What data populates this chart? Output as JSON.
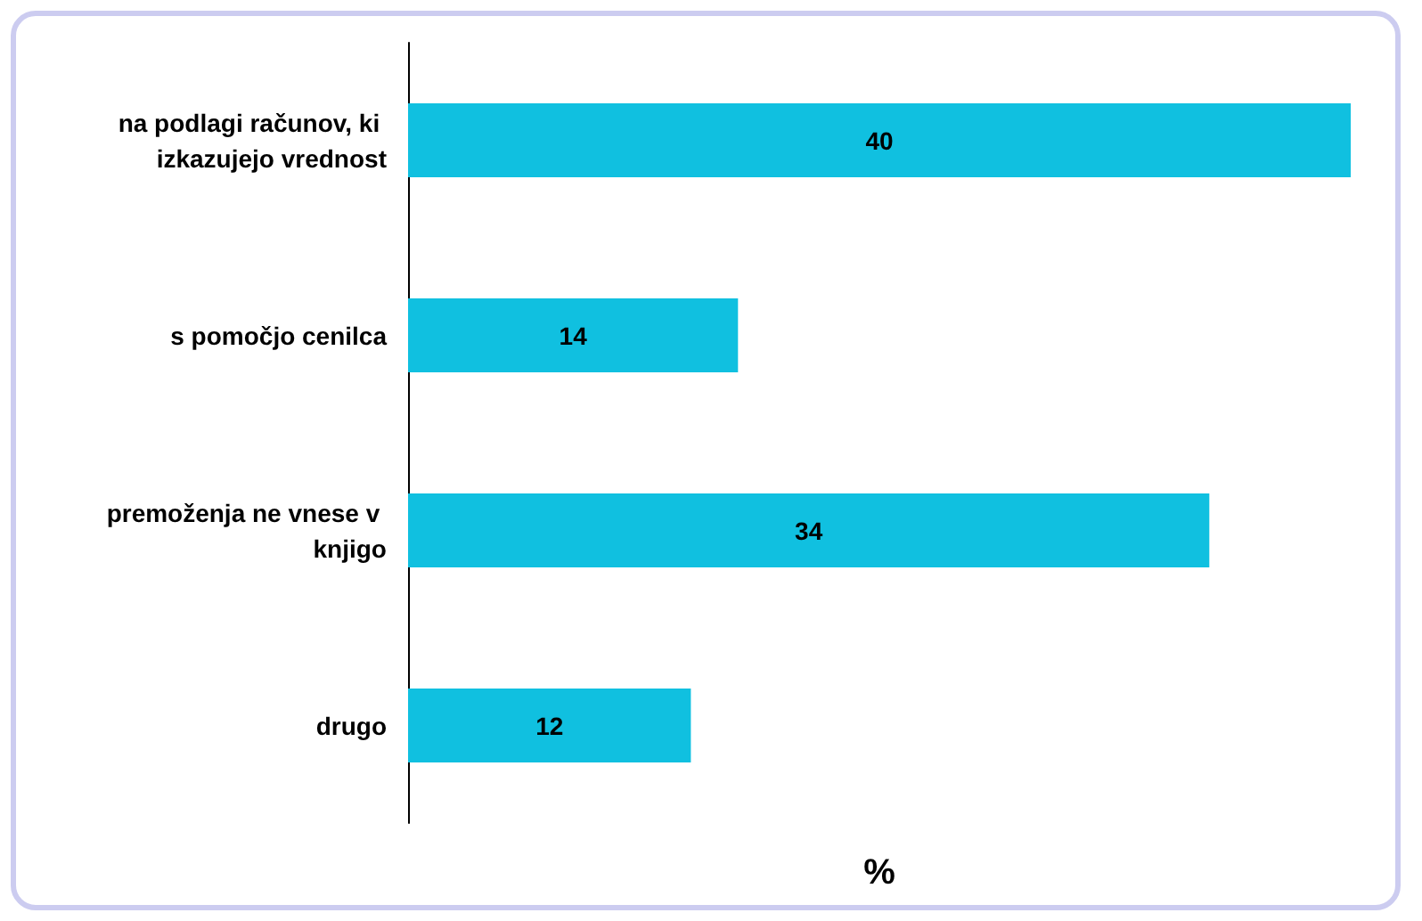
{
  "chart_data": {
    "type": "bar",
    "orientation": "horizontal",
    "xlabel": "%",
    "categories": [
      "na podlagi računov, ki izkazujejo vrednost",
      "s pomočjo cenilca",
      "premoženja ne vnese v knjigo",
      "drugo"
    ],
    "values": [
      40,
      14,
      34,
      12
    ],
    "color": "#10c0e0",
    "data_labels": true,
    "tick_labels": "y"
  }
}
